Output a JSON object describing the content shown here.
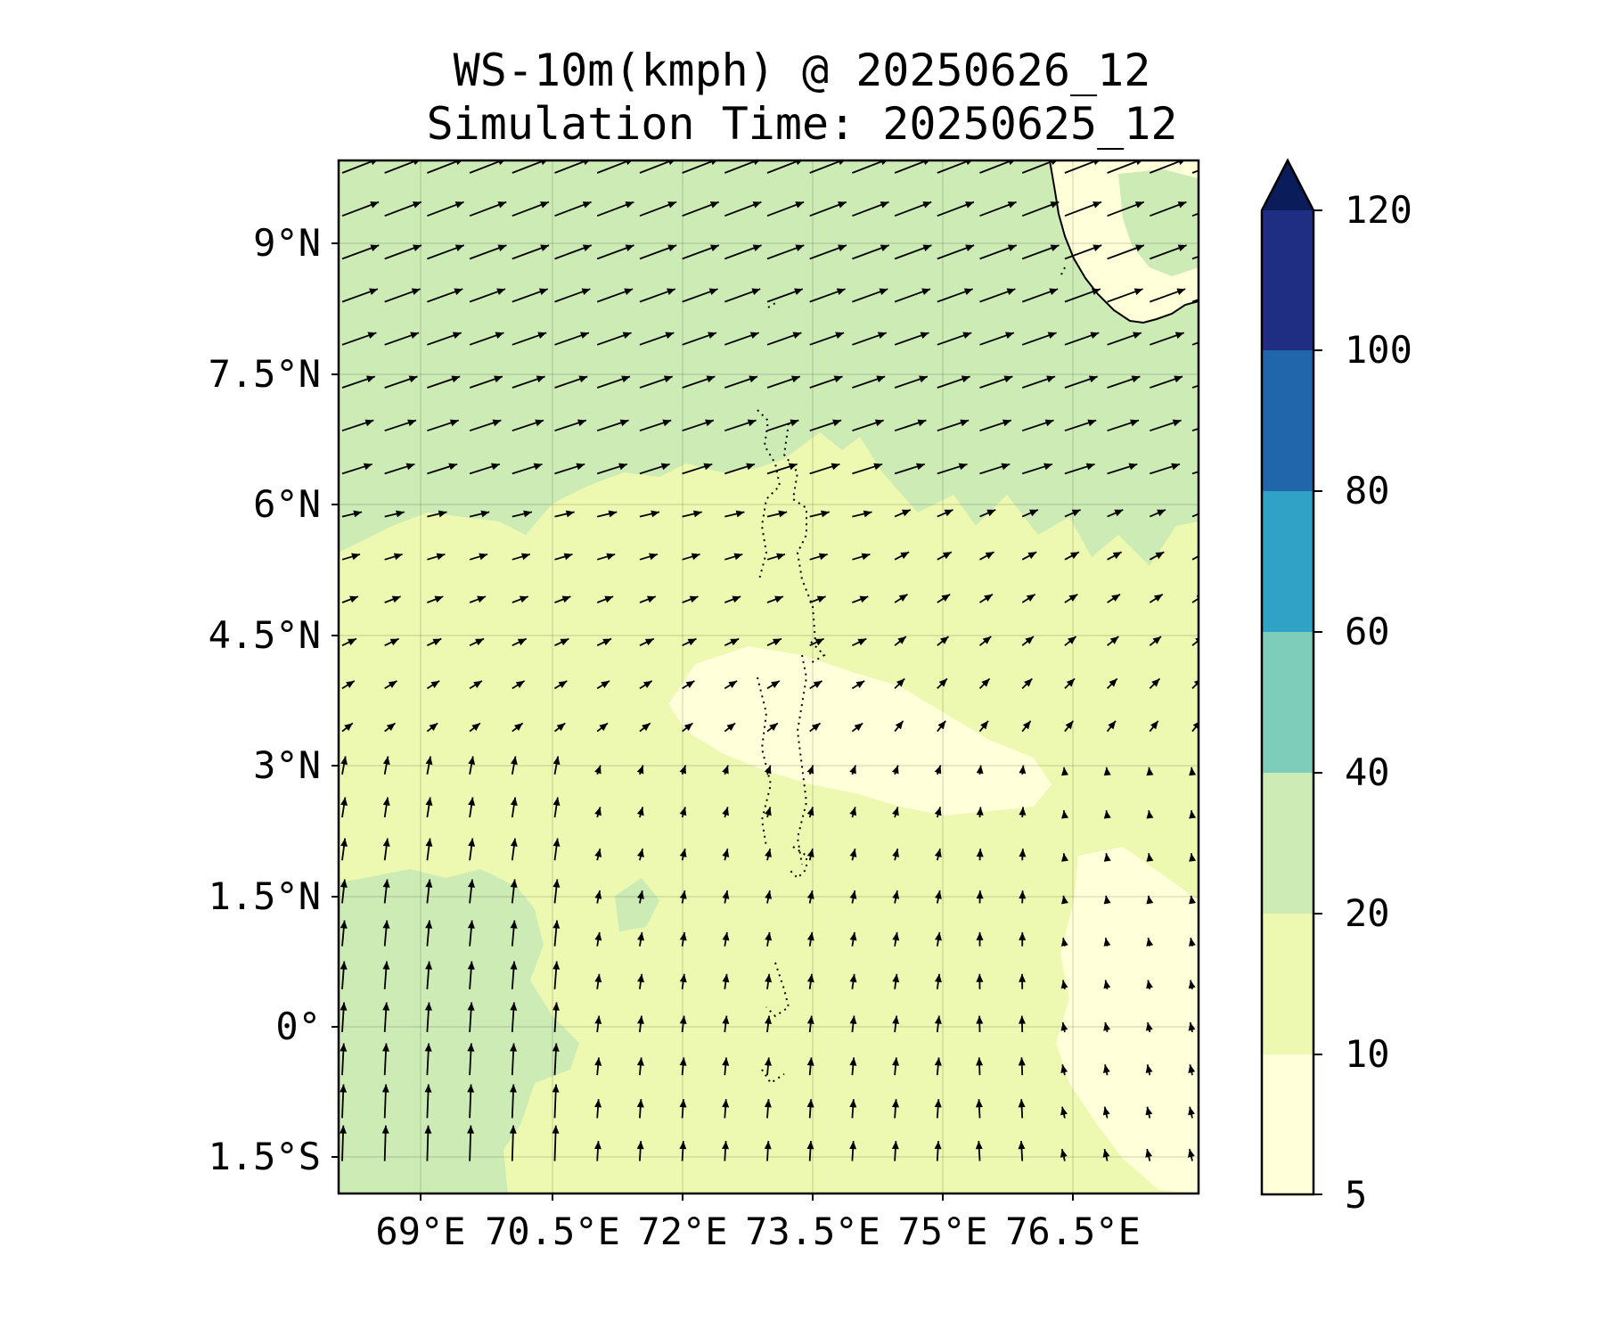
{
  "title_line1": "WS-10m(kmph) @ 20250626_12",
  "title_line2": "Simulation Time: 20250625_12",
  "map": {
    "lon_range": [
      67.5,
      78.0
    ],
    "lat_range": [
      -1.9,
      10.0
    ],
    "coastline": "Southern India (Kerala) visible at upper-right; Maldives atolls shown as dotted outlines in the center",
    "gridlines": true,
    "lat_ticks": [
      "9°N",
      "7.5°N",
      "6°N",
      "4.5°N",
      "3°N",
      "1.5°N",
      "0°",
      "1.5°S"
    ],
    "lon_ticks": [
      "69°E",
      "70.5°E",
      "72°E",
      "73.5°E",
      "75°E",
      "76.5°E"
    ],
    "wind_field": {
      "north_of_6N": "moderate westerly winds (about 20-40 kmph), arrows pointing east-northeast",
      "middle_2N_to_6N": "weaker winds (about 5-15 kmph), turning from westerly to south-westerly",
      "south_of_2N": "southerly winds, strongest (about 20-40 kmph) in the south-west corner near 68-70°E"
    }
  },
  "colorbar": {
    "levels": [
      5,
      10,
      20,
      40,
      60,
      80,
      100,
      120
    ],
    "labels": [
      "5",
      "10",
      "20",
      "40",
      "60",
      "80",
      "100",
      "120"
    ],
    "colors": [
      "#ffffd9",
      "#edf8b1",
      "#cdebb4",
      "#7ecdbb",
      "#2fa2c6",
      "#2165ab",
      "#1f2d83",
      "#0a1d5a"
    ],
    "extend": "max"
  }
}
